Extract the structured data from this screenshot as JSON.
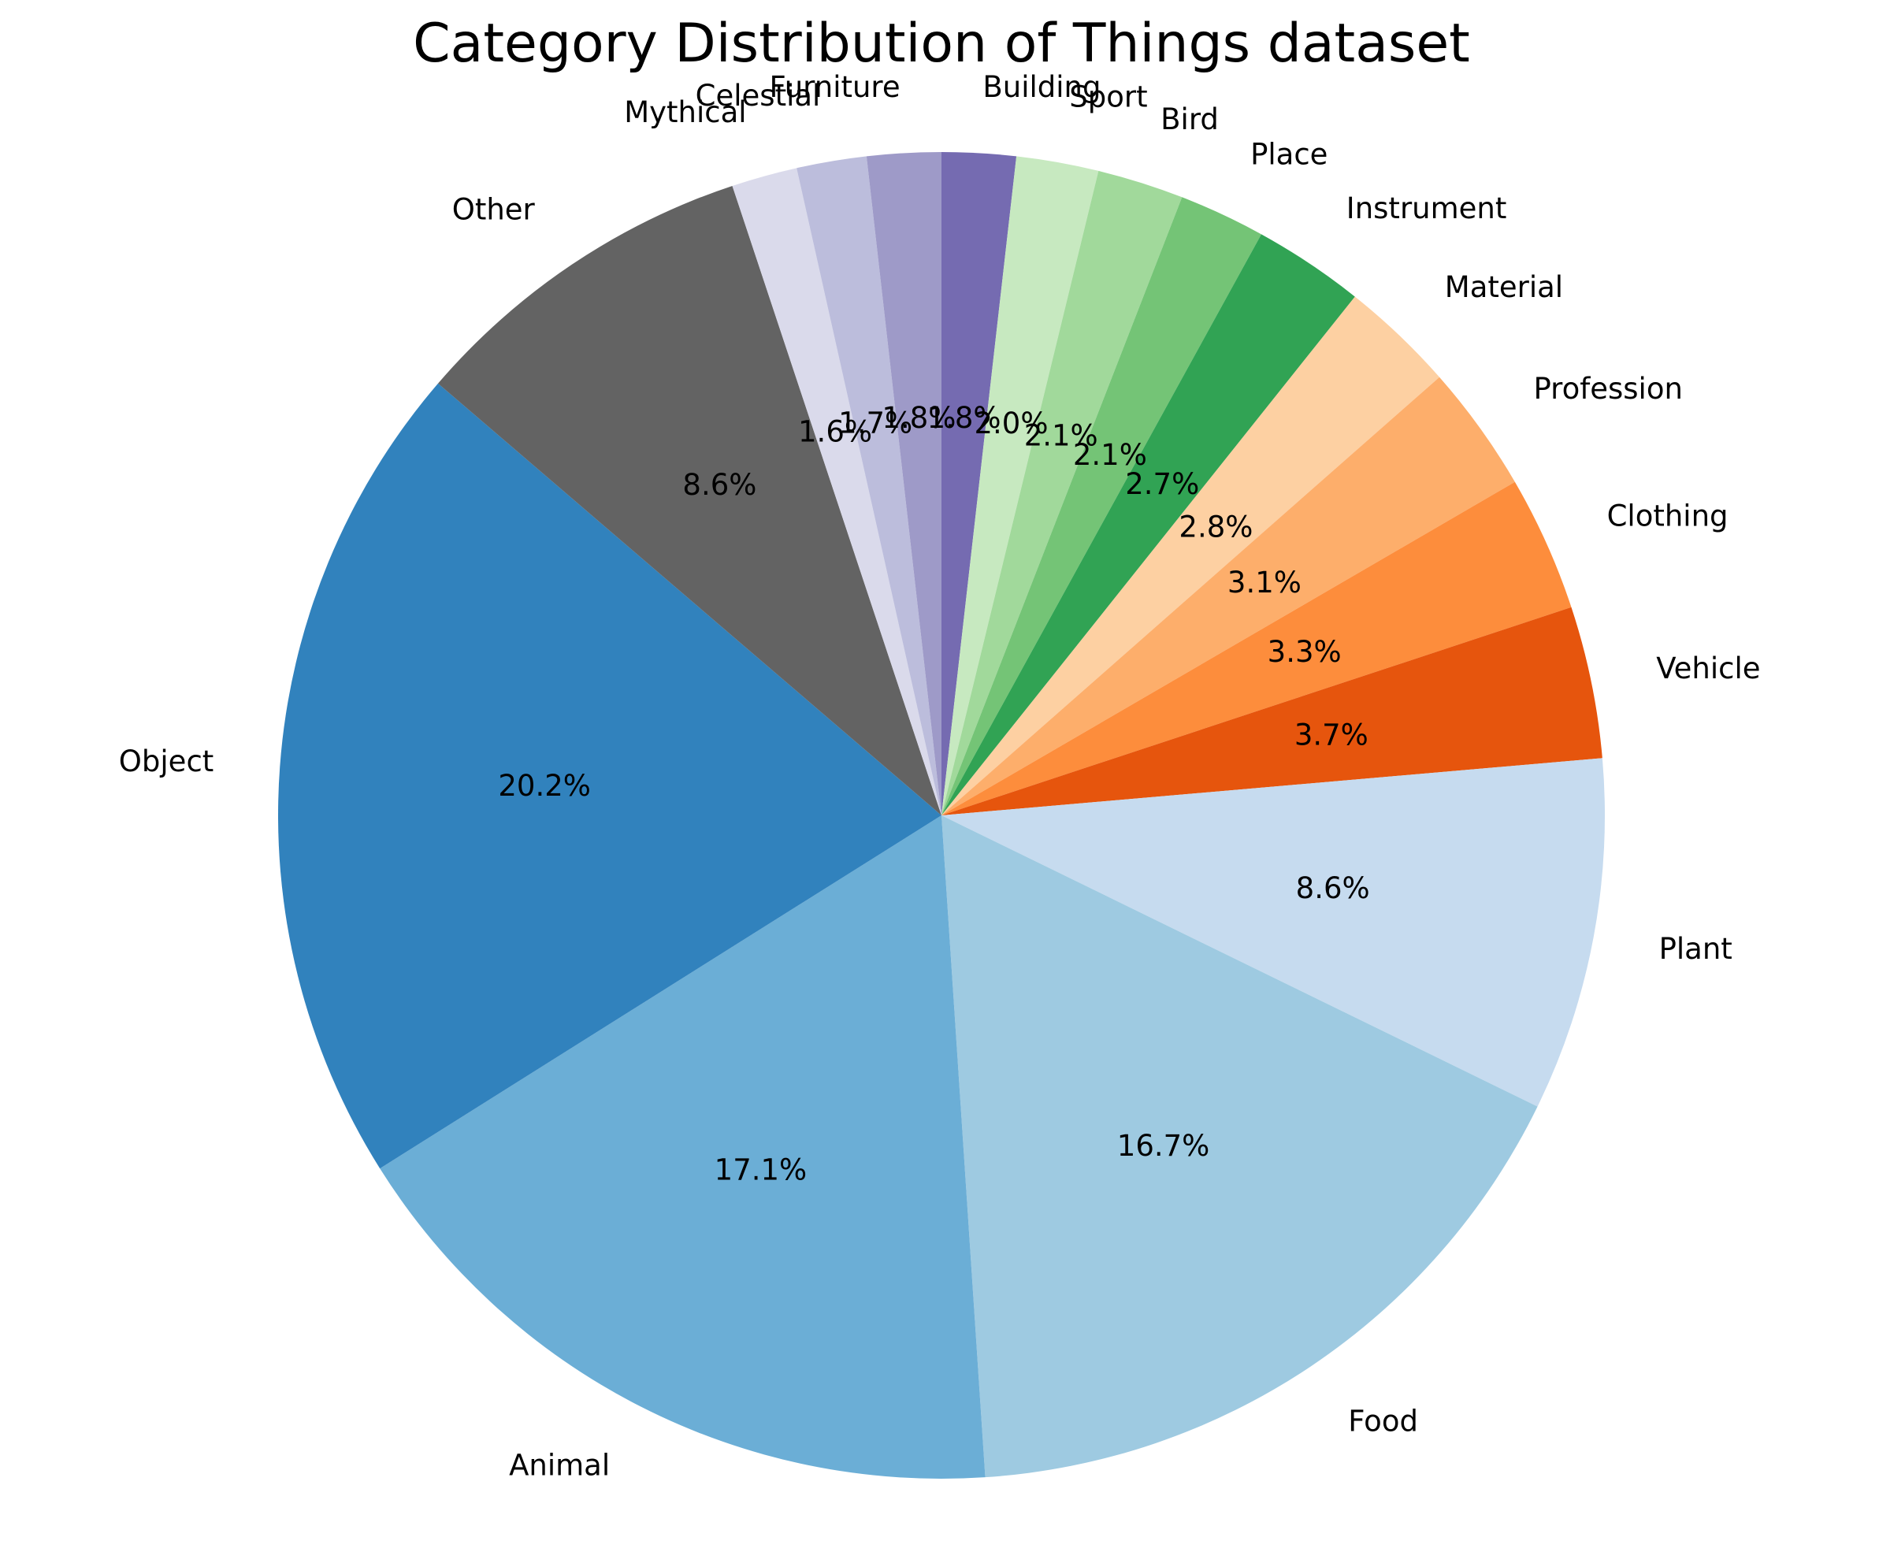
{
  "chart_data": {
    "type": "pie",
    "title": "Category Distribution of Things dataset",
    "start_angle_deg": 90,
    "direction": "clockwise",
    "slices": [
      {
        "label": "Building",
        "value": 1.8,
        "pct_text": "1.8%",
        "color": "#756bb1"
      },
      {
        "label": "Sport",
        "value": 2.0,
        "pct_text": "2.0%",
        "color": "#c7e9c0"
      },
      {
        "label": "Bird",
        "value": 2.1,
        "pct_text": "2.1%",
        "color": "#a1d99b"
      },
      {
        "label": "Place",
        "value": 2.1,
        "pct_text": "2.1%",
        "color": "#74c476"
      },
      {
        "label": "Instrument",
        "value": 2.7,
        "pct_text": "2.7%",
        "color": "#31a354"
      },
      {
        "label": "Material",
        "value": 2.8,
        "pct_text": "2.8%",
        "color": "#fdd0a2"
      },
      {
        "label": "Profession",
        "value": 3.1,
        "pct_text": "3.1%",
        "color": "#fdae6b"
      },
      {
        "label": "Clothing",
        "value": 3.3,
        "pct_text": "3.3%",
        "color": "#fd8d3c"
      },
      {
        "label": "Vehicle",
        "value": 3.7,
        "pct_text": "3.7%",
        "color": "#e6550d"
      },
      {
        "label": "Plant",
        "value": 8.6,
        "pct_text": "8.6%",
        "color": "#c6dbef"
      },
      {
        "label": "Food",
        "value": 16.7,
        "pct_text": "16.7%",
        "color": "#9ecae1"
      },
      {
        "label": "Animal",
        "value": 17.1,
        "pct_text": "17.1%",
        "color": "#6baed6"
      },
      {
        "label": "Object",
        "value": 20.2,
        "pct_text": "20.2%",
        "color": "#3182bd"
      },
      {
        "label": "Other",
        "value": 8.6,
        "pct_text": "8.6%",
        "color": "#636363"
      },
      {
        "label": "Mythical",
        "value": 1.6,
        "pct_text": "1.6%",
        "color": "#dadaeb"
      },
      {
        "label": "Celestial",
        "value": 1.7,
        "pct_text": "1.7%",
        "color": "#bcbddc"
      },
      {
        "label": "Furniture",
        "value": 1.8,
        "pct_text": "1.8%",
        "color": "#9e9ac8"
      }
    ]
  }
}
